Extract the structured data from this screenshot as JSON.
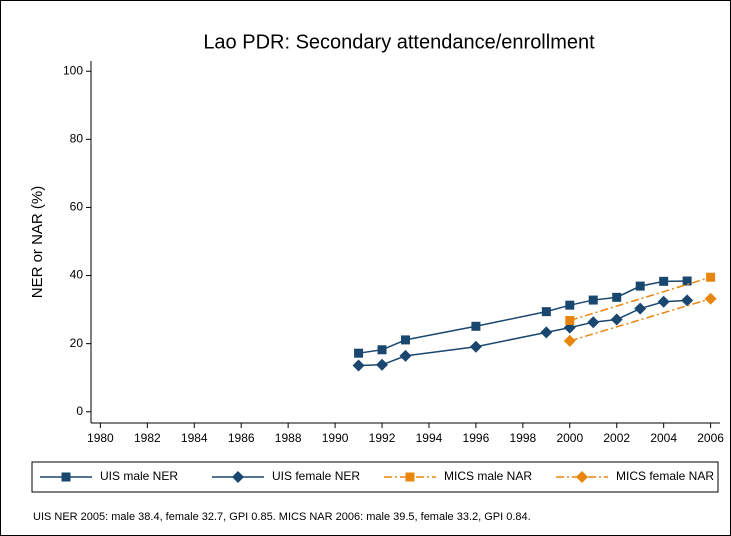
{
  "chart_data": {
    "type": "line",
    "title": "Lao PDR: Secondary attendance/enrollment",
    "ylabel": "NER or NAR (%)",
    "note": "UIS NER 2005: male 38.4, female 32.7, GPI 0.85. MICS NAR 2006: male 39.5, female 33.2, GPI 0.84.",
    "xlim": [
      1979.6,
      2006.4
    ],
    "xticks": [
      1980,
      1982,
      1984,
      1986,
      1988,
      1990,
      1992,
      1994,
      1996,
      1998,
      2000,
      2002,
      2004,
      2006
    ],
    "ylim": [
      -3.3,
      103
    ],
    "yticks": [
      0,
      20,
      40,
      60,
      80,
      100
    ],
    "series": [
      {
        "name": "UIS male NER",
        "color": "#1a476f",
        "marker": "square",
        "dash": "solid",
        "x": [
          1991,
          1992,
          1993,
          1996,
          1999,
          2000,
          2001,
          2002,
          2003,
          2004,
          2005
        ],
        "values": [
          17.2,
          18.2,
          21.1,
          25.1,
          29.4,
          31.3,
          32.8,
          33.6,
          36.9,
          38.3,
          38.4
        ]
      },
      {
        "name": "UIS female NER",
        "color": "#1a476f",
        "marker": "diamond",
        "dash": "solid",
        "x": [
          1991,
          1992,
          1993,
          1996,
          1999,
          2000,
          2001,
          2002,
          2003,
          2004,
          2005
        ],
        "values": [
          13.6,
          13.8,
          16.4,
          19.1,
          23.3,
          24.7,
          26.3,
          27.1,
          30.3,
          32.3,
          32.7
        ]
      },
      {
        "name": "MICS male NAR",
        "color": "#e8850e",
        "marker": "square",
        "dash": "dashdot",
        "x": [
          2000,
          2006
        ],
        "values": [
          26.8,
          39.5
        ]
      },
      {
        "name": "MICS female NAR",
        "color": "#e8850e",
        "marker": "diamond",
        "dash": "dashdot",
        "x": [
          2000,
          2006
        ],
        "values": [
          20.8,
          33.2
        ]
      }
    ]
  }
}
